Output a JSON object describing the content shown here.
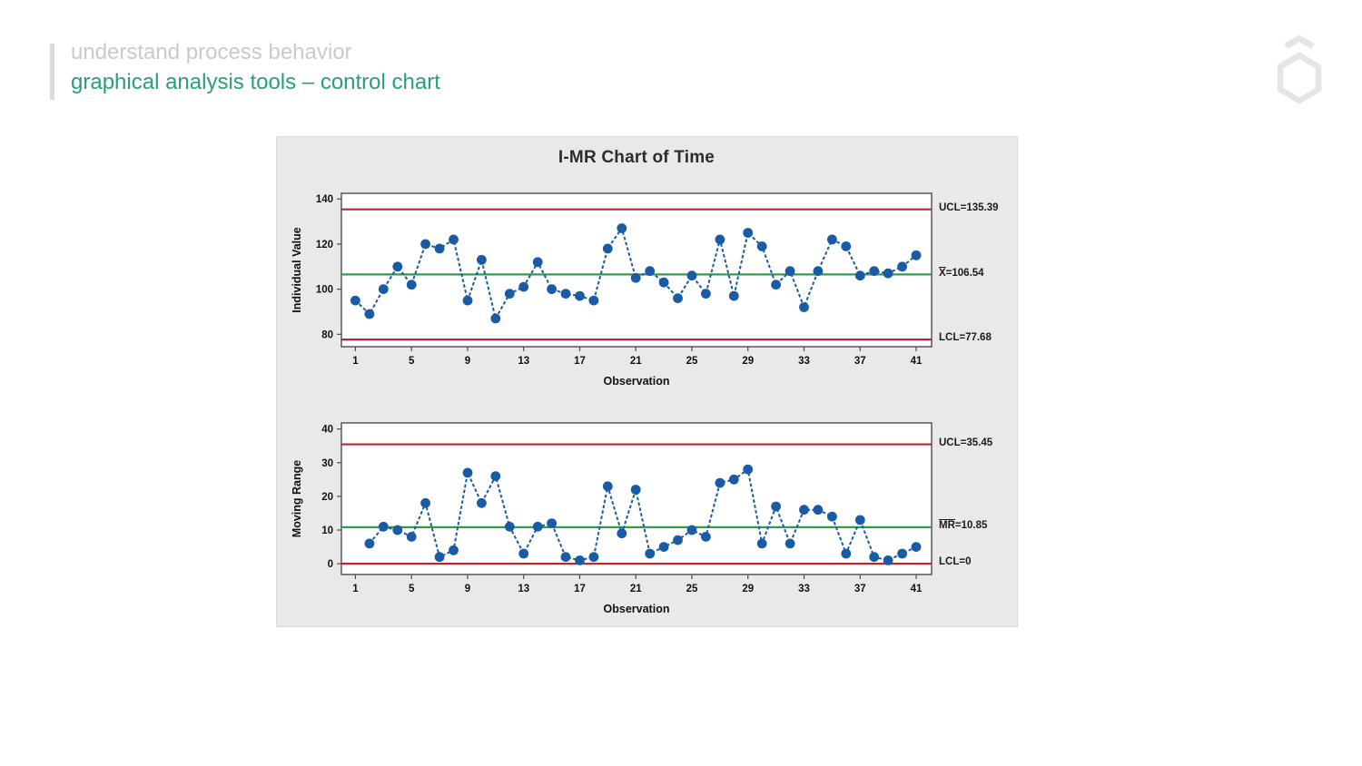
{
  "header": {
    "line1": "understand process behavior",
    "line2": "graphical analysis tools – control chart",
    "line1_color": "#c7cacf",
    "line2_color": "#27a077"
  },
  "logo": {
    "icon": "hexagon-logo-icon",
    "color": "#e4e5e7"
  },
  "figure": {
    "title": "I-MR Chart of Time",
    "panel_bg": "#e9e9e9",
    "series_color": "#1a5ba6",
    "limit_color": "#b2292e",
    "center_color": "#2aa04a",
    "frame_color": "#4d4d4d"
  },
  "chart_data": [
    {
      "type": "line",
      "name": "individual-values",
      "title": "",
      "xlabel": "Observation",
      "ylabel": "Individual Value",
      "x": [
        1,
        2,
        3,
        4,
        5,
        6,
        7,
        8,
        9,
        10,
        11,
        12,
        13,
        14,
        15,
        16,
        17,
        18,
        19,
        20,
        21,
        22,
        23,
        24,
        25,
        26,
        27,
        28,
        29,
        30,
        31,
        32,
        33,
        34,
        35,
        36,
        37,
        38,
        39,
        40,
        41
      ],
      "values": [
        95,
        89,
        100,
        110,
        102,
        120,
        118,
        122,
        95,
        113,
        87,
        98,
        101,
        112,
        100,
        98,
        97,
        95,
        118,
        127,
        105,
        108,
        103,
        96,
        106,
        98,
        122,
        97,
        125,
        119,
        102,
        108,
        92,
        108,
        122,
        119,
        106,
        108,
        107,
        110,
        115
      ],
      "ucl": 135.39,
      "center": 106.54,
      "lcl": 77.68,
      "ucl_label": "UCL=135.39",
      "center_prefix": "X",
      "center_rest": "=106.54",
      "lcl_label": "LCL=77.68",
      "yticks": [
        80,
        100,
        120,
        140
      ],
      "xticks": [
        1,
        5,
        9,
        13,
        17,
        21,
        25,
        29,
        33,
        37,
        41
      ],
      "ylim": [
        74.5,
        142.5
      ],
      "xlim": [
        0,
        42.1
      ],
      "grid": false,
      "legend": "none"
    },
    {
      "type": "line",
      "name": "moving-range",
      "title": "",
      "xlabel": "Observation",
      "ylabel": "Moving Range",
      "x": [
        2,
        3,
        4,
        5,
        6,
        7,
        8,
        9,
        10,
        11,
        12,
        13,
        14,
        15,
        16,
        17,
        18,
        19,
        20,
        21,
        22,
        23,
        24,
        25,
        26,
        27,
        28,
        29,
        30,
        31,
        32,
        33,
        34,
        35,
        36,
        37,
        38,
        39,
        40,
        41
      ],
      "values": [
        6,
        11,
        10,
        8,
        18,
        2,
        4,
        27,
        18,
        26,
        11,
        3,
        11,
        12,
        2,
        1,
        2,
        23,
        9,
        22,
        3,
        5,
        7,
        10,
        8,
        24,
        25,
        28,
        6,
        17,
        6,
        16,
        16,
        14,
        3,
        13,
        2,
        1,
        3,
        5
      ],
      "ucl": 35.45,
      "center": 10.85,
      "lcl": 0,
      "ucl_label": "UCL=35.45",
      "center_prefix": "MR",
      "center_rest": "=10.85",
      "lcl_label": "LCL=0",
      "yticks": [
        0,
        10,
        20,
        30,
        40
      ],
      "xticks": [
        1,
        5,
        9,
        13,
        17,
        21,
        25,
        29,
        33,
        37,
        41
      ],
      "ylim": [
        -3.2,
        41.8
      ],
      "xlim": [
        0,
        42.1
      ],
      "grid": false,
      "legend": "none"
    }
  ]
}
